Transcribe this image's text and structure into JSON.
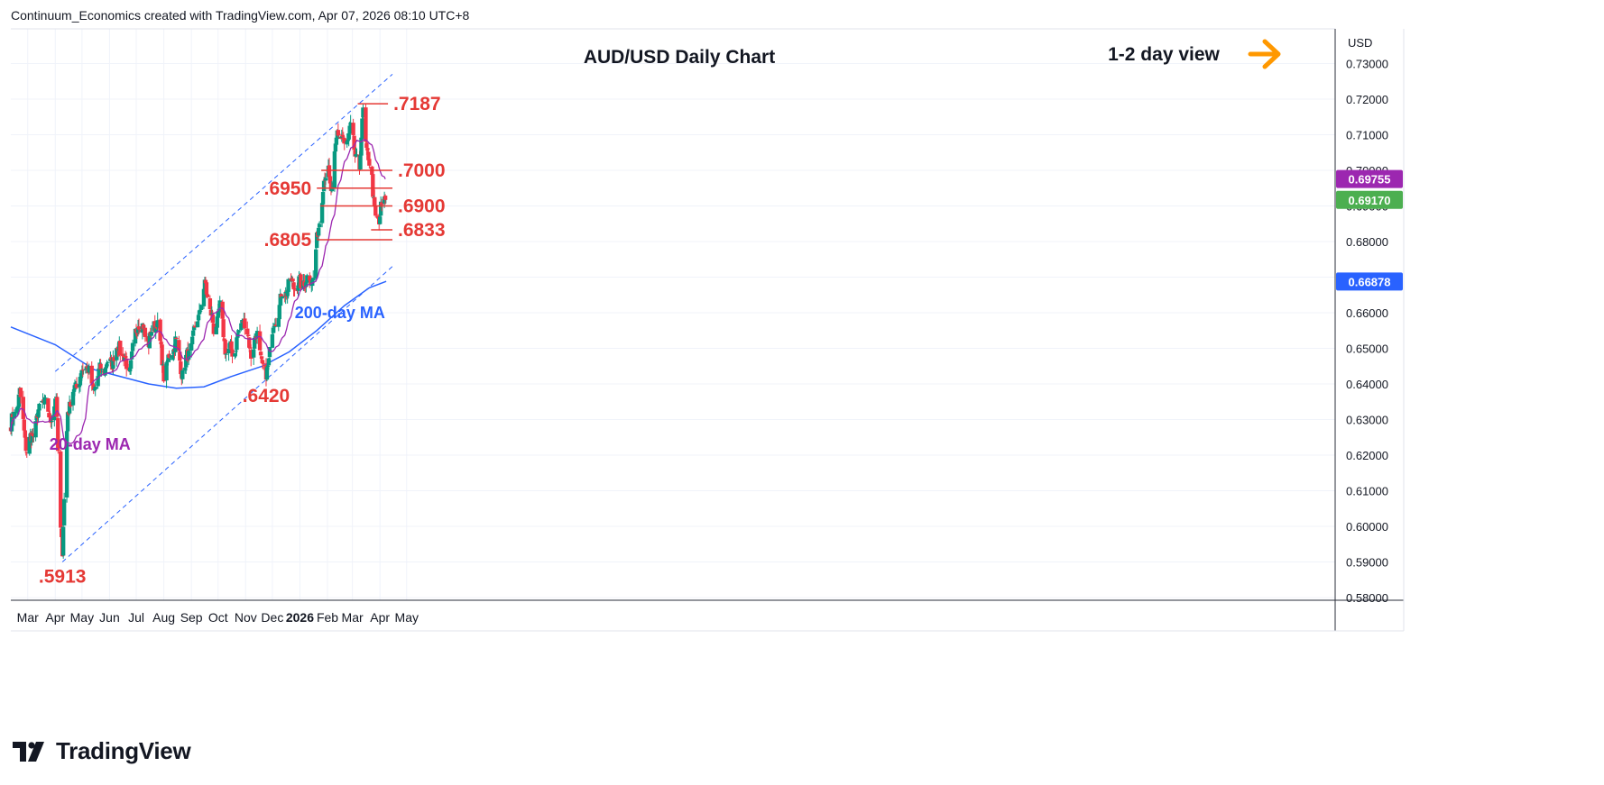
{
  "header": {
    "credit": "Continuum_Economics created with TradingView.com, Apr 07, 2026 08:10 UTC+8"
  },
  "footer": {
    "brand": "TradingView"
  },
  "colors": {
    "up": "#089981",
    "down": "#f23645",
    "ma20": "#9c27b0",
    "ma200": "#2962ff",
    "level": "#e53935",
    "channel": "#2962ff",
    "arrow": "#ff9800",
    "badge_ma20": "#9c27b0",
    "badge_price": "#4caf50",
    "badge_ma200": "#2962ff"
  },
  "chart_data": {
    "type": "candlestick",
    "title": "AUD/USD Daily Chart",
    "view_label": "1-2 day view",
    "currency": "USD",
    "ylim": [
      0.58,
      0.735
    ],
    "y_ticks": [
      "0.58000",
      "0.59000",
      "0.60000",
      "0.61000",
      "0.62000",
      "0.63000",
      "0.64000",
      "0.65000",
      "0.66000",
      "0.67000",
      "0.68000",
      "0.69000",
      "0.70000",
      "0.71000",
      "0.72000",
      "0.73000"
    ],
    "x_labels": [
      {
        "label": "Mar",
        "date": "2025-03-01"
      },
      {
        "label": "Apr",
        "date": "2025-04-01"
      },
      {
        "label": "May",
        "date": "2025-05-01"
      },
      {
        "label": "Jun",
        "date": "2025-06-01"
      },
      {
        "label": "Jul",
        "date": "2025-07-01"
      },
      {
        "label": "Aug",
        "date": "2025-08-01"
      },
      {
        "label": "Sep",
        "date": "2025-09-01"
      },
      {
        "label": "Oct",
        "date": "2025-10-01"
      },
      {
        "label": "Nov",
        "date": "2025-11-01"
      },
      {
        "label": "Dec",
        "date": "2025-12-01"
      },
      {
        "label": "2026",
        "date": "2026-01-01",
        "bold": true
      },
      {
        "label": "Feb",
        "date": "2026-02-01"
      },
      {
        "label": "Mar",
        "date": "2026-03-01"
      },
      {
        "label": "Apr",
        "date": "2026-04-01"
      },
      {
        "label": "May",
        "date": "2026-05-01"
      }
    ],
    "price_path": [
      [
        "2025-02-10",
        0.6285
      ],
      [
        "2025-02-20",
        0.637
      ],
      [
        "2025-02-28",
        0.621
      ],
      [
        "2025-03-10",
        0.629
      ],
      [
        "2025-03-18",
        0.636
      ],
      [
        "2025-03-26",
        0.63
      ],
      [
        "2025-04-02",
        0.636
      ],
      [
        "2025-04-07",
        0.6
      ],
      [
        "2025-04-09",
        0.593
      ],
      [
        "2025-04-15",
        0.633
      ],
      [
        "2025-04-25",
        0.64
      ],
      [
        "2025-05-06",
        0.646
      ],
      [
        "2025-05-13",
        0.638
      ],
      [
        "2025-05-22",
        0.644
      ],
      [
        "2025-06-03",
        0.646
      ],
      [
        "2025-06-12",
        0.651
      ],
      [
        "2025-06-23",
        0.643
      ],
      [
        "2025-07-03",
        0.658
      ],
      [
        "2025-07-15",
        0.652
      ],
      [
        "2025-07-24",
        0.658
      ],
      [
        "2025-08-01",
        0.643
      ],
      [
        "2025-08-14",
        0.652
      ],
      [
        "2025-08-22",
        0.643
      ],
      [
        "2025-09-03",
        0.653
      ],
      [
        "2025-09-17",
        0.668
      ],
      [
        "2025-09-26",
        0.655
      ],
      [
        "2025-10-03",
        0.661
      ],
      [
        "2025-10-10",
        0.649
      ],
      [
        "2025-10-20",
        0.65
      ],
      [
        "2025-10-29",
        0.659
      ],
      [
        "2025-11-07",
        0.649
      ],
      [
        "2025-11-14",
        0.654
      ],
      [
        "2025-11-21",
        0.643
      ],
      [
        "2025-11-24",
        0.642
      ],
      [
        "2025-12-01",
        0.655
      ],
      [
        "2025-12-12",
        0.665
      ],
      [
        "2025-12-22",
        0.668
      ],
      [
        "2025-12-31",
        0.668
      ],
      [
        "2026-01-09",
        0.669
      ],
      [
        "2026-01-16",
        0.67
      ],
      [
        "2026-01-21",
        0.682
      ],
      [
        "2026-01-27",
        0.696
      ],
      [
        "2026-02-02",
        0.7
      ],
      [
        "2026-02-06",
        0.693
      ],
      [
        "2026-02-12",
        0.712
      ],
      [
        "2026-02-20",
        0.707
      ],
      [
        "2026-02-27",
        0.711
      ],
      [
        "2026-03-04",
        0.705
      ],
      [
        "2026-03-09",
        0.7
      ],
      [
        "2026-03-13",
        0.718
      ],
      [
        "2026-03-17",
        0.705
      ],
      [
        "2026-03-23",
        0.698
      ],
      [
        "2026-03-27",
        0.686
      ],
      [
        "2026-03-31",
        0.684
      ],
      [
        "2026-04-02",
        0.691
      ],
      [
        "2026-04-07",
        0.6917
      ]
    ],
    "candles_start": "2025-02-10",
    "candles_end": "2026-04-07",
    "ma20_lag_days": 10,
    "ma200_path": [
      [
        "2025-02-10",
        0.656
      ],
      [
        "2025-04-01",
        0.651
      ],
      [
        "2025-05-15",
        0.644
      ],
      [
        "2025-07-15",
        0.64
      ],
      [
        "2025-08-15",
        0.6388
      ],
      [
        "2025-09-15",
        0.6392
      ],
      [
        "2025-10-15",
        0.642
      ],
      [
        "2025-11-20",
        0.645
      ],
      [
        "2025-12-20",
        0.649
      ],
      [
        "2026-01-20",
        0.655
      ],
      [
        "2026-02-20",
        0.662
      ],
      [
        "2026-03-20",
        0.667
      ],
      [
        "2026-04-08",
        0.6688
      ]
    ],
    "channel": {
      "upper": [
        [
          "2025-04-01",
          0.6435
        ],
        [
          "2026-04-15",
          0.727
        ]
      ],
      "lower": [
        [
          "2025-04-09",
          0.59
        ],
        [
          "2026-04-15",
          0.673
        ]
      ]
    },
    "levels": [
      {
        "label": ".7187",
        "value": 0.7187,
        "from": "2026-03-07",
        "to": "2026-04-10",
        "label_side": "right"
      },
      {
        "label": ".7000",
        "value": 0.7,
        "from": "2026-01-25",
        "to": "2026-04-15",
        "label_side": "right"
      },
      {
        "label": ".6950",
        "value": 0.695,
        "from": "2026-01-20",
        "to": "2026-04-15",
        "label_side": "left"
      },
      {
        "label": ".6900",
        "value": 0.69,
        "from": "2026-01-24",
        "to": "2026-04-15",
        "label_side": "right"
      },
      {
        "label": ".6833",
        "value": 0.6833,
        "from": "2026-03-22",
        "to": "2026-04-15",
        "label_side": "right"
      },
      {
        "label": ".6805",
        "value": 0.6805,
        "from": "2026-01-20",
        "to": "2026-04-15",
        "label_side": "left"
      }
    ],
    "annotations": [
      {
        "label": ".5913",
        "date": "2025-04-09",
        "value": 0.5913,
        "position": "below"
      },
      {
        "label": ".6420",
        "date": "2025-11-24",
        "value": 0.642,
        "position": "below"
      }
    ],
    "ma_labels": [
      {
        "label": "20-day MA",
        "date": "2025-05-10",
        "value": 0.6215
      },
      {
        "label": "200-day MA",
        "date": "2026-02-15",
        "value": 0.6585
      }
    ],
    "badges": [
      {
        "label": "0.69755",
        "value": 0.69755,
        "kind": "ma20"
      },
      {
        "label": "0.69170",
        "value": 0.6917,
        "kind": "price"
      },
      {
        "label": "0.66878",
        "value": 0.66878,
        "kind": "ma200"
      }
    ]
  }
}
